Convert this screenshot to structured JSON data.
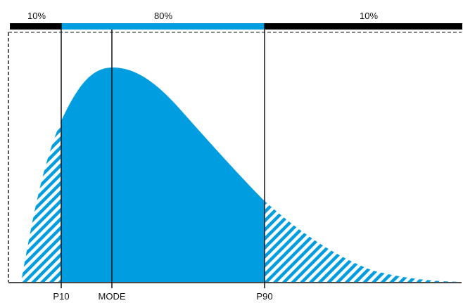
{
  "diagram": {
    "top_bar": {
      "segments": [
        {
          "label": "10%",
          "color": "#000000",
          "from": "start",
          "to": "P10"
        },
        {
          "label": "80%",
          "color": "#009ee0",
          "from": "P10",
          "to": "P90"
        },
        {
          "label": "10%",
          "color": "#000000",
          "from": "P90",
          "to": "end"
        }
      ]
    },
    "markers": [
      {
        "key": "p10",
        "label": "P10"
      },
      {
        "key": "mode",
        "label": "MODE"
      },
      {
        "key": "p90",
        "label": "P90"
      }
    ],
    "curve": {
      "fill_color": "#009ee0",
      "tail_pattern": "diagonal-hatch",
      "tails_hatched": true
    },
    "frame": {
      "style": "dashed",
      "color": "#222222"
    }
  }
}
